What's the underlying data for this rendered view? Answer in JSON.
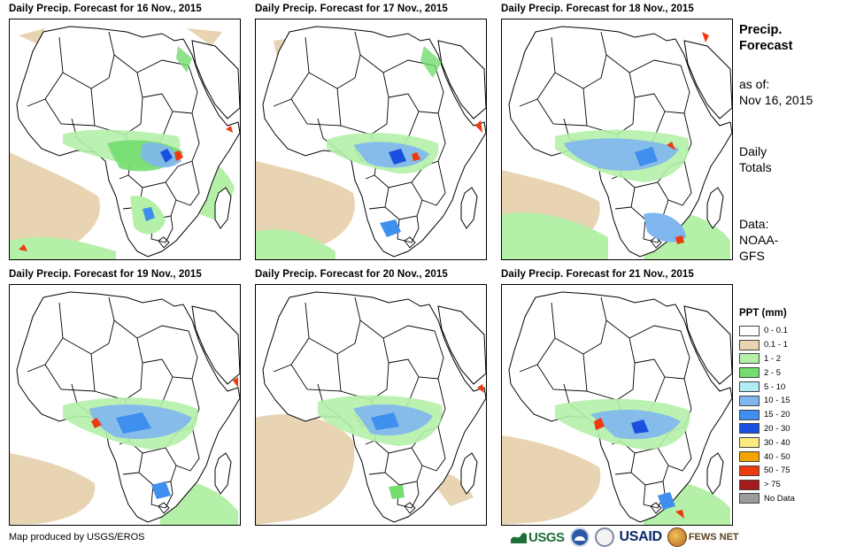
{
  "panels": [
    {
      "title": "Daily Precip. Forecast for 16 Nov., 2015"
    },
    {
      "title": "Daily Precip. Forecast for 17 Nov., 2015"
    },
    {
      "title": "Daily Precip. Forecast for 18 Nov., 2015"
    },
    {
      "title": "Daily Precip. Forecast for 19 Nov., 2015"
    },
    {
      "title": "Daily Precip. Forecast for 20 Nov., 2015"
    },
    {
      "title": "Daily Precip. Forecast for 21 Nov., 2015"
    }
  ],
  "side": {
    "title_line1": "Precip.",
    "title_line2": "Forecast",
    "asof_label": "as of:",
    "asof_date": "Nov 16, 2015",
    "totals_line1": "Daily",
    "totals_line2": "Totals",
    "data_label": "Data:",
    "data_line1": "NOAA-",
    "data_line2": "GFS"
  },
  "legend": {
    "title": "PPT (mm)",
    "items": [
      {
        "label": "0 - 0.1",
        "color": "#ffffff"
      },
      {
        "label": "0.1 - 1",
        "color": "#e8d4b2"
      },
      {
        "label": "1 - 2",
        "color": "#b4f0a8"
      },
      {
        "label": "2 - 5",
        "color": "#73dd6e"
      },
      {
        "label": "5 - 10",
        "color": "#b2ecf4"
      },
      {
        "label": "10 - 15",
        "color": "#7fb6f0"
      },
      {
        "label": "15 - 20",
        "color": "#3f8fee"
      },
      {
        "label": "20 - 30",
        "color": "#1a50e0"
      },
      {
        "label": "30 - 40",
        "color": "#ffea80"
      },
      {
        "label": "40 - 50",
        "color": "#f5a300"
      },
      {
        "label": "50 - 75",
        "color": "#ee3a10"
      },
      {
        "label": "> 75",
        "color": "#a51a1a"
      },
      {
        "label": "No Data",
        "color": "#9b9b9b"
      }
    ]
  },
  "footer": {
    "credit": "Map produced by USGS/EROS",
    "logos": {
      "usgs": "USGS",
      "usaid": "USAID",
      "fews": "FEWS NET"
    }
  }
}
